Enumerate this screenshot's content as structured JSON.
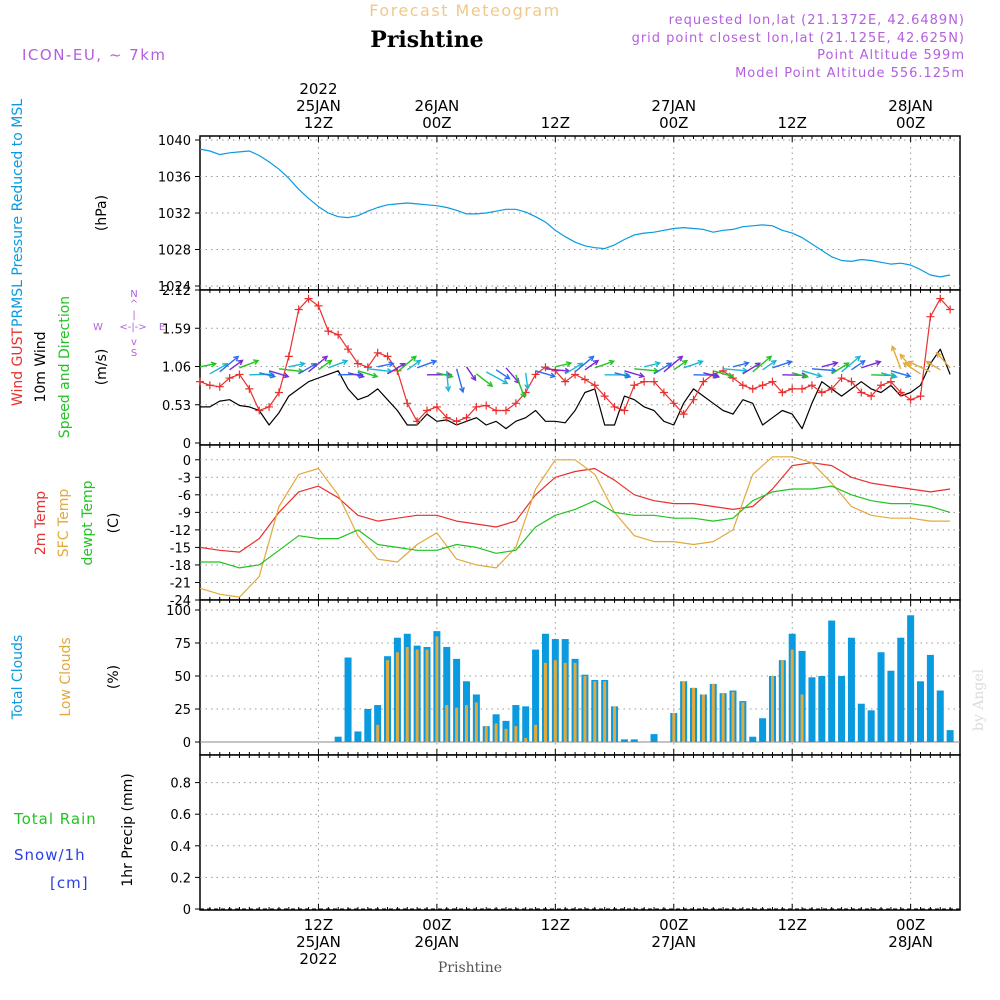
{
  "header": {
    "product": "Forecast Meteogram",
    "station": "Prishtine",
    "model": "ICON-EU, ~ 7km",
    "requested": "requested lon,lat (21.1372E, 42.6489N)",
    "gridpoint": "grid point closest lon,lat (21.125E, 42.625N)",
    "altitude": "Point Altitude 599m",
    "model_altitude": "Model Point Altitude 556.125m"
  },
  "footer": {
    "station": "Prishtine",
    "credit": "by Angel"
  },
  "time_axis": {
    "top": [
      {
        "t": 12,
        "lines": [
          "2022",
          "25JAN",
          "12Z"
        ]
      },
      {
        "t": 24,
        "lines": [
          "26JAN",
          "00Z"
        ]
      },
      {
        "t": 36,
        "lines": [
          "12Z"
        ]
      },
      {
        "t": 48,
        "lines": [
          "27JAN",
          "00Z"
        ]
      },
      {
        "t": 60,
        "lines": [
          "12Z"
        ]
      },
      {
        "t": 72,
        "lines": [
          "28JAN",
          "00Z"
        ]
      }
    ],
    "bottom": [
      {
        "t": 12,
        "lines": [
          "12Z",
          "25JAN",
          "2022"
        ]
      },
      {
        "t": 24,
        "lines": [
          "00Z",
          "26JAN"
        ]
      },
      {
        "t": 36,
        "lines": [
          "12Z"
        ]
      },
      {
        "t": 48,
        "lines": [
          "00Z",
          "27JAN"
        ]
      },
      {
        "t": 60,
        "lines": [
          "12Z"
        ]
      },
      {
        "t": 72,
        "lines": [
          "00Z",
          "28JAN"
        ]
      }
    ]
  },
  "chart_data": [
    {
      "type": "line",
      "panel": "pressure",
      "title": "PRMSL Pressure Reduced to MSL",
      "ylabel": "(hPa)",
      "ylim": [
        1024,
        1040
      ],
      "yticks": [
        "1024",
        "1028",
        "1032",
        "1036",
        "1040"
      ],
      "xlim": [
        0,
        77
      ],
      "grid": true,
      "series": [
        {
          "name": "PRMSL",
          "color": "#0a9ae0",
          "x": [
            0,
            1,
            2,
            3,
            4,
            5,
            6,
            7,
            8,
            9,
            10,
            11,
            12,
            13,
            14,
            15,
            16,
            17,
            18,
            19,
            20,
            21,
            22,
            23,
            24,
            25,
            26,
            27,
            28,
            29,
            30,
            31,
            32,
            33,
            34,
            35,
            36,
            37,
            38,
            39,
            40,
            41,
            42,
            43,
            44,
            45,
            46,
            47,
            48,
            49,
            50,
            51,
            52,
            53,
            54,
            55,
            56,
            57,
            58,
            59,
            60,
            61,
            62,
            63,
            64,
            65,
            66,
            67,
            68,
            69,
            70,
            71,
            72,
            73,
            74,
            75,
            76
          ],
          "values": [
            1039.0,
            1038.8,
            1038.4,
            1038.6,
            1038.7,
            1038.8,
            1038.3,
            1037.6,
            1036.8,
            1035.8,
            1034.6,
            1033.6,
            1032.7,
            1032.0,
            1031.6,
            1031.5,
            1031.7,
            1032.2,
            1032.6,
            1032.9,
            1033.0,
            1033.1,
            1033.0,
            1032.9,
            1032.8,
            1032.6,
            1032.3,
            1031.9,
            1031.9,
            1032.0,
            1032.2,
            1032.4,
            1032.4,
            1032.1,
            1031.6,
            1031.0,
            1030.1,
            1029.4,
            1028.8,
            1028.4,
            1028.2,
            1028.1,
            1028.5,
            1029.1,
            1029.6,
            1029.8,
            1029.9,
            1030.1,
            1030.3,
            1030.4,
            1030.3,
            1030.2,
            1029.9,
            1030.1,
            1030.2,
            1030.5,
            1030.6,
            1030.7,
            1030.6,
            1030.1,
            1029.8,
            1029.3,
            1028.6,
            1027.9,
            1027.2,
            1026.8,
            1026.7,
            1026.9,
            1026.8,
            1026.6,
            1026.4,
            1026.5,
            1026.3,
            1025.8,
            1025.2,
            1025.0,
            1025.2
          ]
        }
      ]
    },
    {
      "type": "line",
      "panel": "wind",
      "series_labels": [
        "Wind GUST",
        "10m Wind",
        "Speed and Direction"
      ],
      "ylabel": "(m/s)",
      "ylim": [
        0,
        2.12
      ],
      "yticks": [
        "0",
        "0.53",
        "1.06",
        "1.59",
        "2.12"
      ],
      "compass": [
        "W",
        "<-|->",
        "E",
        "N",
        "^",
        "|",
        "v",
        "S"
      ],
      "xlim": [
        0,
        77
      ],
      "grid": true,
      "series": [
        {
          "name": "Wind GUST",
          "color": "#e8302e",
          "marker": "+",
          "x": [
            0,
            1,
            2,
            3,
            4,
            5,
            6,
            7,
            8,
            9,
            10,
            11,
            12,
            13,
            14,
            15,
            16,
            17,
            18,
            19,
            20,
            21,
            22,
            23,
            24,
            25,
            26,
            27,
            28,
            29,
            30,
            31,
            32,
            33,
            34,
            35,
            36,
            37,
            38,
            39,
            40,
            41,
            42,
            43,
            44,
            45,
            46,
            47,
            48,
            49,
            50,
            51,
            52,
            53,
            54,
            55,
            56,
            57,
            58,
            59,
            60,
            61,
            62,
            63,
            64,
            65,
            66,
            67,
            68,
            69,
            70,
            71,
            72,
            73,
            74,
            75,
            76
          ],
          "values": [
            0.85,
            0.8,
            0.78,
            0.9,
            0.95,
            0.75,
            0.45,
            0.5,
            0.7,
            1.2,
            1.85,
            2.0,
            1.9,
            1.55,
            1.5,
            1.3,
            1.1,
            1.05,
            1.25,
            1.2,
            1.0,
            0.55,
            0.3,
            0.45,
            0.5,
            0.35,
            0.3,
            0.35,
            0.5,
            0.52,
            0.45,
            0.45,
            0.55,
            0.7,
            0.95,
            1.05,
            1.0,
            0.85,
            0.95,
            0.88,
            0.8,
            0.65,
            0.5,
            0.45,
            0.8,
            0.85,
            0.85,
            0.7,
            0.55,
            0.4,
            0.6,
            0.85,
            0.95,
            1.0,
            0.9,
            0.8,
            0.75,
            0.8,
            0.85,
            0.7,
            0.75,
            0.75,
            0.8,
            0.7,
            0.75,
            0.9,
            0.85,
            0.7,
            0.65,
            0.8,
            0.85,
            0.7,
            0.6,
            0.65,
            1.75,
            2.0,
            1.85
          ]
        },
        {
          "name": "10m Wind",
          "color": "#000000",
          "x": [
            0,
            1,
            2,
            3,
            4,
            5,
            6,
            7,
            8,
            9,
            10,
            11,
            12,
            13,
            14,
            15,
            16,
            17,
            18,
            19,
            20,
            21,
            22,
            23,
            24,
            25,
            26,
            27,
            28,
            29,
            30,
            31,
            32,
            33,
            34,
            35,
            36,
            37,
            38,
            39,
            40,
            41,
            42,
            43,
            44,
            45,
            46,
            47,
            48,
            49,
            50,
            51,
            52,
            53,
            54,
            55,
            56,
            57,
            58,
            59,
            60,
            61,
            62,
            63,
            64,
            65,
            66,
            67,
            68,
            69,
            70,
            71,
            72,
            73,
            74,
            75,
            76
          ],
          "values": [
            0.5,
            0.5,
            0.58,
            0.6,
            0.52,
            0.5,
            0.45,
            0.25,
            0.42,
            0.65,
            0.75,
            0.85,
            0.9,
            0.95,
            1.0,
            0.75,
            0.6,
            0.65,
            0.75,
            0.6,
            0.45,
            0.25,
            0.25,
            0.4,
            0.3,
            0.32,
            0.25,
            0.3,
            0.35,
            0.25,
            0.3,
            0.2,
            0.3,
            0.35,
            0.45,
            0.3,
            0.3,
            0.28,
            0.45,
            0.7,
            0.75,
            0.25,
            0.25,
            0.65,
            0.6,
            0.5,
            0.45,
            0.3,
            0.25,
            0.55,
            0.75,
            0.65,
            0.55,
            0.45,
            0.4,
            0.6,
            0.55,
            0.25,
            0.35,
            0.45,
            0.4,
            0.2,
            0.55,
            0.85,
            0.75,
            0.65,
            0.75,
            0.85,
            0.75,
            0.7,
            0.8,
            0.65,
            0.7,
            0.8,
            1.1,
            1.3,
            0.95
          ]
        },
        {
          "name": "Speed and Direction",
          "color": "#22c322"
        }
      ]
    },
    {
      "type": "line",
      "panel": "temperature",
      "series_labels": [
        "2m Temp",
        "SFC Temp",
        "dewpt Temp"
      ],
      "ylabel": "(C)",
      "ylim": [
        -24,
        1.5
      ],
      "yticks": [
        "-24",
        "-21",
        "-18",
        "-15",
        "-12",
        "-9",
        "-6",
        "-3",
        "0"
      ],
      "xlim": [
        0,
        77
      ],
      "grid": true,
      "series": [
        {
          "name": "2m Temp",
          "color": "#e8302e",
          "x": [
            0,
            2,
            4,
            6,
            8,
            10,
            12,
            14,
            16,
            18,
            20,
            22,
            24,
            26,
            28,
            30,
            32,
            34,
            36,
            38,
            40,
            42,
            44,
            46,
            48,
            50,
            52,
            54,
            56,
            58,
            60,
            62,
            64,
            66,
            68,
            70,
            72,
            74,
            76
          ],
          "values": [
            -15.0,
            -15.5,
            -15.8,
            -13.5,
            -9.0,
            -5.5,
            -4.5,
            -6.5,
            -9.5,
            -10.5,
            -10.0,
            -9.5,
            -9.5,
            -10.5,
            -11.0,
            -11.5,
            -10.5,
            -6.0,
            -3.0,
            -2.0,
            -1.5,
            -3.5,
            -6.0,
            -7.0,
            -7.5,
            -7.5,
            -8.0,
            -8.5,
            -8.0,
            -5.0,
            -1.0,
            -0.5,
            -1.0,
            -3.0,
            -4.0,
            -4.5,
            -5.0,
            -5.5,
            -5.0
          ]
        },
        {
          "name": "SFC Temp",
          "color": "#e2a93b",
          "x": [
            0,
            2,
            4,
            6,
            8,
            10,
            12,
            14,
            16,
            18,
            20,
            22,
            24,
            26,
            28,
            30,
            32,
            34,
            36,
            38,
            40,
            42,
            44,
            46,
            48,
            50,
            52,
            54,
            56,
            58,
            60,
            62,
            64,
            66,
            68,
            70,
            72,
            74,
            76
          ],
          "values": [
            -22.0,
            -23.0,
            -23.5,
            -20.0,
            -8.0,
            -2.5,
            -1.5,
            -6.0,
            -13.0,
            -17.0,
            -17.5,
            -14.5,
            -12.5,
            -17.0,
            -18.0,
            -18.5,
            -15.0,
            -5.0,
            0.0,
            0.0,
            -2.5,
            -9.0,
            -13.0,
            -14.0,
            -14.0,
            -14.5,
            -14.0,
            -12.0,
            -2.5,
            0.5,
            0.5,
            -0.5,
            -4.0,
            -8.0,
            -9.5,
            -10.0,
            -10.0,
            -10.5,
            -10.5
          ]
        },
        {
          "name": "dewpt Temp",
          "color": "#22c322",
          "x": [
            0,
            2,
            4,
            6,
            8,
            10,
            12,
            14,
            16,
            18,
            20,
            22,
            24,
            26,
            28,
            30,
            32,
            34,
            36,
            38,
            40,
            42,
            44,
            46,
            48,
            50,
            52,
            54,
            56,
            58,
            60,
            62,
            64,
            66,
            68,
            70,
            72,
            74,
            76
          ],
          "values": [
            -17.5,
            -17.5,
            -18.5,
            -18.0,
            -15.5,
            -13.0,
            -13.5,
            -13.5,
            -12.0,
            -14.5,
            -15.0,
            -15.5,
            -15.5,
            -14.5,
            -15.0,
            -16.0,
            -15.5,
            -11.5,
            -9.5,
            -8.5,
            -7.0,
            -9.0,
            -9.5,
            -9.5,
            -10.0,
            -10.0,
            -10.5,
            -10.0,
            -7.0,
            -5.5,
            -5.0,
            -5.0,
            -4.5,
            -6.0,
            -7.0,
            -7.5,
            -7.5,
            -8.0,
            -9.0
          ]
        }
      ]
    },
    {
      "type": "bar",
      "panel": "clouds",
      "series_labels": [
        "Total Clouds",
        "Low Clouds"
      ],
      "ylabel": "(%)",
      "ylim": [
        0,
        100
      ],
      "yticks": [
        "0",
        "25",
        "50",
        "75",
        "100"
      ],
      "xlim": [
        0,
        77
      ],
      "grid": true,
      "x": [
        14,
        15,
        16,
        17,
        18,
        19,
        20,
        21,
        22,
        23,
        24,
        25,
        26,
        27,
        28,
        29,
        30,
        31,
        32,
        33,
        34,
        35,
        36,
        37,
        38,
        39,
        40,
        41,
        42,
        43,
        44,
        45,
        46,
        47,
        48,
        49,
        50,
        51,
        52,
        53,
        54,
        55,
        56,
        57,
        58,
        59,
        60,
        61,
        62,
        63,
        64,
        65,
        66,
        67,
        68,
        69,
        70,
        71,
        72,
        73,
        74,
        75,
        76
      ],
      "series": [
        {
          "name": "Total Clouds",
          "color": "#0a9ae0",
          "values": [
            4,
            64,
            8,
            25,
            28,
            65,
            79,
            82,
            73,
            72,
            84,
            72,
            63,
            46,
            36,
            12,
            21,
            16,
            28,
            27,
            70,
            82,
            78,
            78,
            63,
            51,
            47,
            47,
            27,
            2,
            2,
            0,
            6,
            0,
            22,
            46,
            41,
            36,
            44,
            37,
            39,
            31,
            4,
            18,
            50,
            62,
            82,
            69,
            49,
            50,
            92,
            50,
            79,
            29,
            24,
            68,
            54,
            79,
            96,
            46,
            66,
            39,
            9
          ]
        },
        {
          "name": "Low Clouds",
          "color": "#e2a93b",
          "values": [
            0,
            0,
            0,
            0,
            13,
            62,
            68,
            72,
            70,
            70,
            80,
            28,
            26,
            28,
            30,
            12,
            14,
            10,
            12,
            3,
            13,
            60,
            62,
            60,
            60,
            50,
            46,
            46,
            27,
            0,
            0,
            0,
            0,
            0,
            22,
            46,
            41,
            36,
            44,
            37,
            38,
            30,
            0,
            0,
            50,
            62,
            70,
            36,
            0,
            0,
            0,
            0,
            0,
            0,
            0,
            0,
            0,
            0,
            0,
            0,
            0,
            0,
            0
          ]
        }
      ]
    },
    {
      "type": "bar",
      "panel": "precipitation",
      "series_labels": [
        "Total Rain",
        "Snow/1h",
        "[cm]"
      ],
      "ylabel": "1hr Precip (mm)",
      "ylim": [
        0,
        1.0
      ],
      "yticks": [
        "0",
        "0.2",
        "0.4",
        "0.6",
        "0.8"
      ],
      "xlim": [
        0,
        77
      ],
      "grid": true,
      "series": [
        {
          "name": "Total Rain",
          "color": "#22c322",
          "values": []
        },
        {
          "name": "Snow/1h",
          "color": "#2a3fe6",
          "values": []
        }
      ]
    }
  ]
}
